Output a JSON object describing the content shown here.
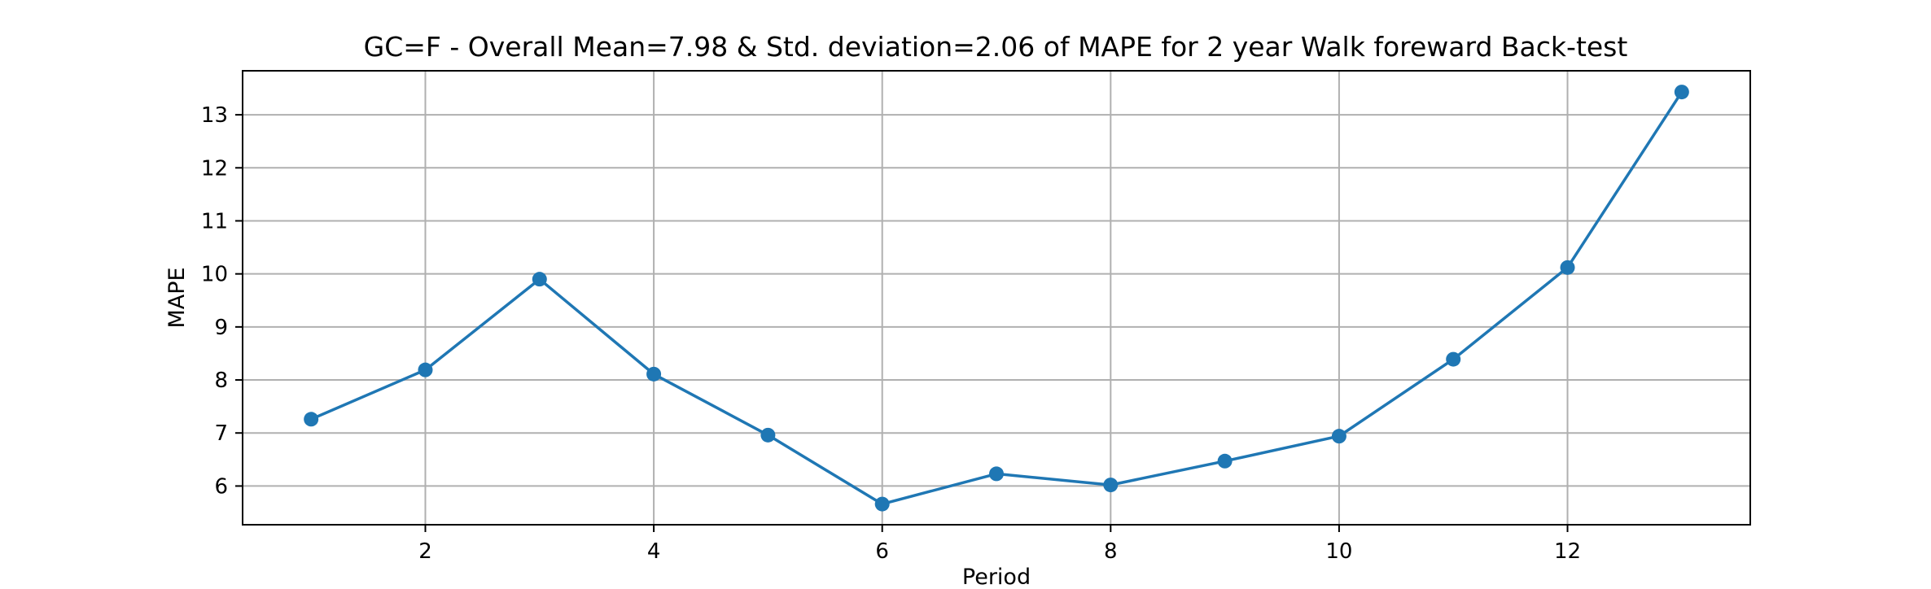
{
  "chart_data": {
    "type": "line",
    "title": "GC=F - Overall Mean=7.98 & Std. deviation=2.06 of MAPE for 2 year Walk foreward Back-test",
    "xlabel": "Period",
    "ylabel": "MAPE",
    "xlim": [
      0.4,
      13.6
    ],
    "ylim": [
      5.27,
      13.83
    ],
    "xticks": [
      2,
      4,
      6,
      8,
      10,
      12
    ],
    "yticks": [
      6,
      7,
      8,
      9,
      10,
      11,
      12,
      13
    ],
    "grid": true,
    "series": [
      {
        "color": "#1f77b4",
        "marker": "circle",
        "x": [
          1,
          2,
          3,
          4,
          5,
          6,
          7,
          8,
          9,
          10,
          11,
          12,
          13
        ],
        "values": [
          7.26,
          8.19,
          9.9,
          8.11,
          6.96,
          5.66,
          6.23,
          6.02,
          6.47,
          6.94,
          8.39,
          10.12,
          13.43
        ]
      }
    ]
  }
}
